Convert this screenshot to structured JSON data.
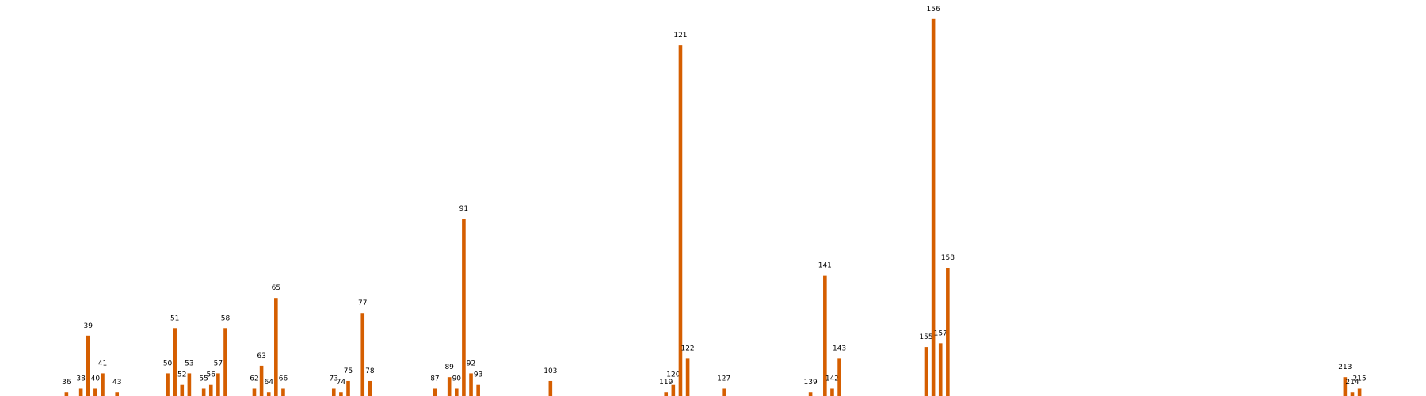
{
  "chart_data": {
    "type": "bar",
    "color": "#d55e00",
    "x": [
      36,
      38,
      39,
      40,
      41,
      43,
      50,
      51,
      52,
      53,
      55,
      56,
      57,
      58,
      62,
      63,
      64,
      65,
      66,
      73,
      74,
      75,
      77,
      78,
      87,
      89,
      90,
      91,
      92,
      93,
      103,
      119,
      120,
      121,
      122,
      127,
      139,
      141,
      142,
      143,
      155,
      156,
      157,
      158,
      213,
      214,
      215
    ],
    "values": [
      1,
      2,
      16,
      2,
      6,
      1,
      6,
      18,
      3,
      6,
      2,
      3,
      6,
      18,
      2,
      8,
      1,
      26,
      2,
      2,
      1,
      4,
      22,
      4,
      2,
      5,
      2,
      47,
      6,
      3,
      4,
      1,
      3,
      93,
      10,
      2,
      1,
      32,
      2,
      10,
      13,
      100,
      14,
      34,
      5,
      1,
      2
    ],
    "xlim": [
      26.8,
      224.2
    ],
    "ylim": [
      0,
      105
    ]
  }
}
